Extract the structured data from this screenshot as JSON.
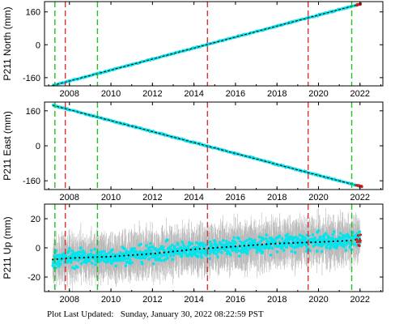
{
  "footer_text": "Plot Last Updated:   Sunday, January 30, 2022 08:22:59 PST",
  "colors": {
    "frame": "#000000",
    "data_points": "#00e5ee",
    "error_bars": "#b8b8b8",
    "trend_line": "#000000",
    "red_lines": "#e03030",
    "green_lines": "#22c022",
    "recent_points": "#cc2020"
  },
  "chart_data": [
    {
      "type": "scatter",
      "ylabel": "P211 North (mm)",
      "xlim": [
        2006.8,
        2023.1
      ],
      "ylim": [
        -200,
        210
      ],
      "xticks": [
        2008,
        2010,
        2012,
        2014,
        2016,
        2018,
        2020,
        2022
      ],
      "yticks": [
        -160,
        0,
        160
      ],
      "trend": [
        [
          2007.2,
          -198
        ],
        [
          2022.0,
          198
        ]
      ],
      "error_bar_scale": 4,
      "point_scatter": 4,
      "red_lines": [
        2007.8,
        2014.65,
        2019.5
      ],
      "green_lines": [
        2007.3,
        2009.35,
        2021.6
      ]
    },
    {
      "type": "scatter",
      "ylabel": "P211 East (mm)",
      "xlim": [
        2006.8,
        2023.1
      ],
      "ylim": [
        -200,
        200
      ],
      "xticks": [
        2008,
        2010,
        2012,
        2014,
        2016,
        2018,
        2020,
        2022
      ],
      "yticks": [
        -160,
        0,
        160
      ],
      "trend": [
        [
          2007.2,
          185
        ],
        [
          2022.0,
          -185
        ]
      ],
      "error_bar_scale": 4,
      "point_scatter": 4,
      "red_lines": [
        2007.8,
        2014.65,
        2019.5
      ],
      "green_lines": [
        2007.3,
        2009.35,
        2021.6
      ]
    },
    {
      "type": "scatter",
      "ylabel": "P211 Up (mm)",
      "xlim": [
        2006.8,
        2023.1
      ],
      "ylim": [
        -30,
        30
      ],
      "xticks": [
        2008,
        2010,
        2012,
        2014,
        2016,
        2018,
        2020,
        2022
      ],
      "yticks": [
        -20,
        0,
        20
      ],
      "trend_points": [
        [
          2007.2,
          -8
        ],
        [
          2008.0,
          -7
        ],
        [
          2010.0,
          -6
        ],
        [
          2012.0,
          -4
        ],
        [
          2014.0,
          -1
        ],
        [
          2016.0,
          1
        ],
        [
          2018.0,
          3
        ],
        [
          2020.0,
          4
        ],
        [
          2021.5,
          5
        ],
        [
          2022.0,
          6
        ]
      ],
      "error_bar_scale": 8,
      "point_scatter": 7,
      "red_lines": [
        2007.8,
        2014.65,
        2019.5
      ],
      "green_lines": [
        2007.3,
        2009.35,
        2021.6
      ]
    }
  ]
}
